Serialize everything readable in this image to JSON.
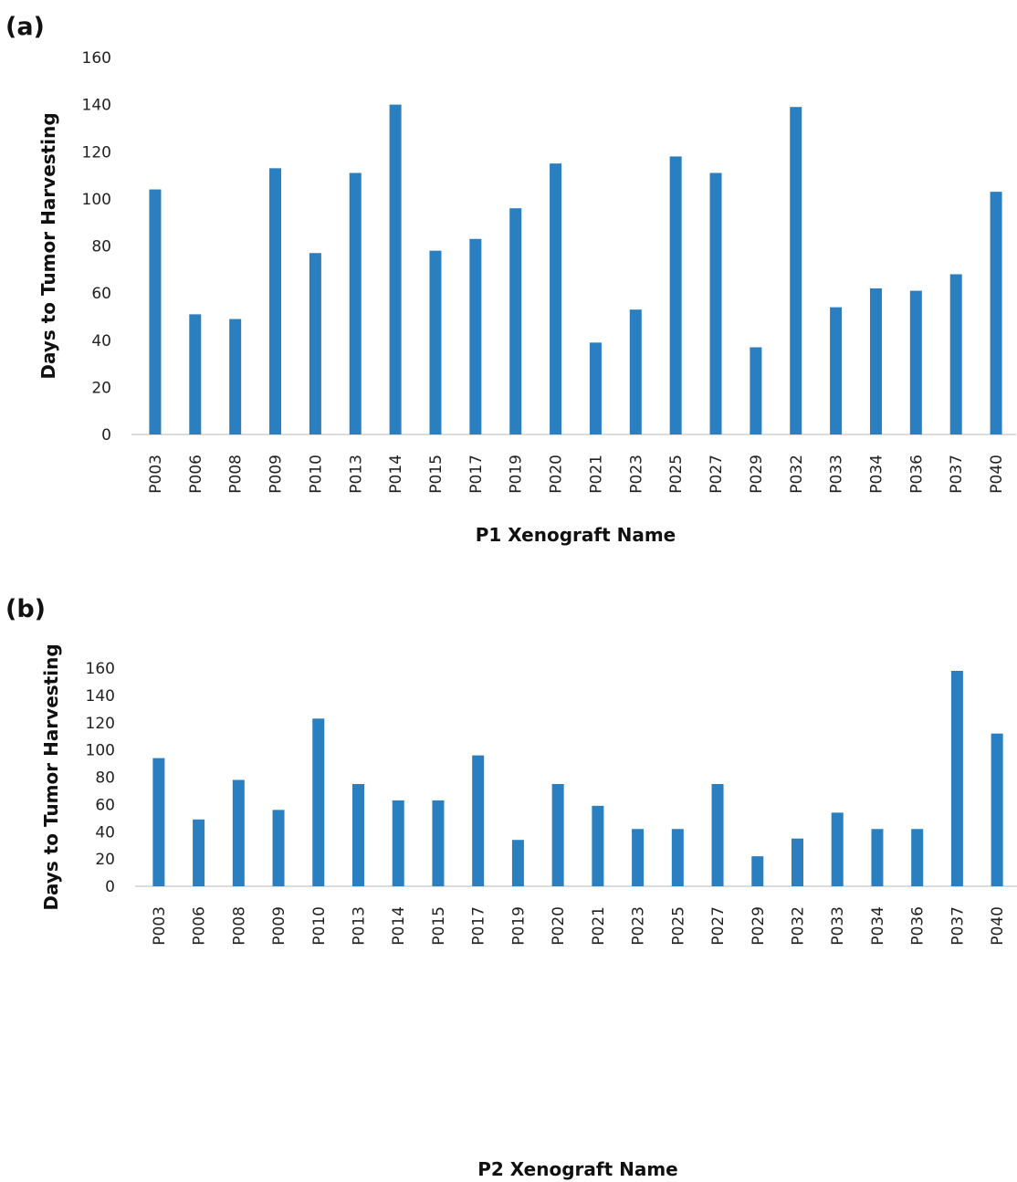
{
  "colors": {
    "bar": "#2a7fc1",
    "axis": "#d0d0d0",
    "text": "#222222"
  },
  "chart_data": [
    {
      "panel_label": "(a)",
      "type": "bar",
      "title": "",
      "xlabel": "P1 Xenograft Name",
      "ylabel": "Days to Tumor Harvesting",
      "ylim": [
        0,
        160
      ],
      "yticks": [
        0,
        20,
        40,
        60,
        80,
        100,
        120,
        140,
        160
      ],
      "grid": false,
      "categories": [
        "P003",
        "P006",
        "P008",
        "P009",
        "P010",
        "P013",
        "P014",
        "P015",
        "P017",
        "P019",
        "P020",
        "P021",
        "P023",
        "P025",
        "P027",
        "P029",
        "P032",
        "P033",
        "P034",
        "P036",
        "P037",
        "P040"
      ],
      "values": [
        104,
        51,
        49,
        113,
        77,
        111,
        140,
        78,
        83,
        96,
        115,
        39,
        53,
        118,
        111,
        37,
        139,
        54,
        62,
        61,
        68,
        103
      ]
    },
    {
      "panel_label": "(b)",
      "type": "bar",
      "title": "",
      "xlabel": "P2 Xenograft Name",
      "ylabel": "Days to Tumor Harvesting",
      "ylim": [
        0,
        160
      ],
      "yticks": [
        0,
        20,
        40,
        60,
        80,
        100,
        120,
        140,
        160
      ],
      "grid": false,
      "categories": [
        "P003",
        "P006",
        "P008",
        "P009",
        "P010",
        "P013",
        "P014",
        "P015",
        "P017",
        "P019",
        "P020",
        "P021",
        "P023",
        "P025",
        "P027",
        "P029",
        "P032",
        "P033",
        "P034",
        "P036",
        "P037",
        "P040"
      ],
      "values": [
        94,
        49,
        78,
        56,
        123,
        75,
        63,
        63,
        96,
        34,
        75,
        59,
        42,
        42,
        75,
        22,
        35,
        54,
        42,
        42,
        158,
        112
      ]
    }
  ]
}
